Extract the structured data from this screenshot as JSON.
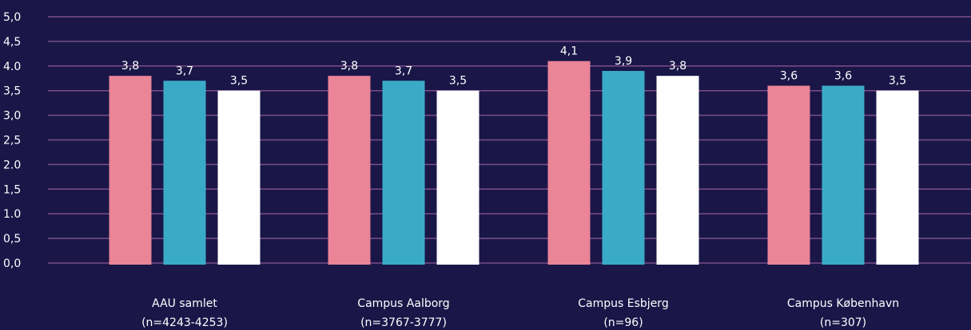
{
  "chart_data": {
    "type": "bar",
    "categories": [
      [
        "AAU samlet",
        "(n=4243-4253)"
      ],
      [
        "Campus Aalborg",
        "(n=3767-3777)"
      ],
      [
        "Campus Esbjerg",
        "(n=96)"
      ],
      [
        "Campus København",
        "(n=307)"
      ]
    ],
    "series": [
      {
        "values": [
          3.8,
          3.8,
          4.1,
          3.6
        ],
        "labels": [
          "3,8",
          "3,8",
          "4,1",
          "3,6"
        ],
        "color": "#ea8497"
      },
      {
        "values": [
          3.7,
          3.7,
          3.9,
          3.6
        ],
        "labels": [
          "3,7",
          "3,7",
          "3,9",
          "3,6"
        ],
        "color": "#3aabc7"
      },
      {
        "values": [
          3.5,
          3.5,
          3.8,
          3.5
        ],
        "labels": [
          "3,5",
          "3,5",
          "3,8",
          "3,5"
        ],
        "color": "#ffffff"
      }
    ],
    "yticks": [
      "0,0",
      "0,5",
      "1.0",
      "1,5",
      "2.0",
      "2,5",
      "3,0",
      "3,5",
      "4.0",
      "4,5",
      "5,0"
    ],
    "ylim": [
      0,
      5
    ],
    "grid": true,
    "gridColor": "#7a4f86",
    "background": "#1a1648"
  }
}
